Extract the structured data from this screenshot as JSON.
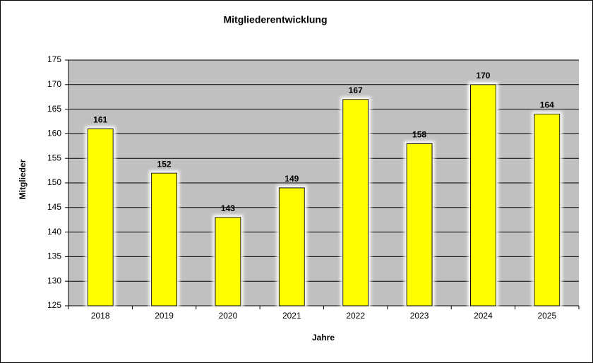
{
  "chart_data": {
    "type": "bar",
    "title": "Mitgliederentwicklung",
    "x_label": "Jahre",
    "y_label": "Mitglieder",
    "categories": [
      "2018",
      "2019",
      "2020",
      "2021",
      "2022",
      "2023",
      "2024",
      "2025"
    ],
    "values": [
      161,
      152,
      143,
      149,
      167,
      158,
      170,
      164
    ],
    "color": "#ffff00",
    "ylim": [
      125,
      175
    ],
    "yticks": [
      125,
      130,
      135,
      140,
      145,
      150,
      155,
      160,
      165,
      170,
      175
    ],
    "grid": true
  }
}
